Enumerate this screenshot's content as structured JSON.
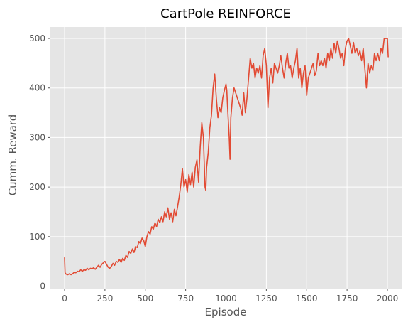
{
  "chart_data": {
    "type": "line",
    "title": "CartPole REINFORCE",
    "xlabel": "Episode",
    "ylabel": "Cumm. Reward",
    "xlim": [
      -88,
      2088
    ],
    "ylim": [
      -5,
      523
    ],
    "xticks": [
      0,
      250,
      500,
      750,
      1000,
      1250,
      1500,
      1750,
      2000
    ],
    "yticks": [
      0,
      100,
      200,
      300,
      400,
      500
    ],
    "grid": true,
    "style": "ggplot",
    "series": [
      {
        "color": "#E24A33",
        "points": [
          [
            0,
            58
          ],
          [
            3,
            27
          ],
          [
            10,
            24
          ],
          [
            20,
            23
          ],
          [
            30,
            25
          ],
          [
            40,
            23
          ],
          [
            50,
            25
          ],
          [
            60,
            28
          ],
          [
            70,
            27
          ],
          [
            80,
            30
          ],
          [
            90,
            29
          ],
          [
            100,
            33
          ],
          [
            110,
            30
          ],
          [
            120,
            33
          ],
          [
            130,
            32
          ],
          [
            140,
            36
          ],
          [
            150,
            33
          ],
          [
            160,
            36
          ],
          [
            170,
            35
          ],
          [
            180,
            37
          ],
          [
            190,
            34
          ],
          [
            200,
            38
          ],
          [
            210,
            42
          ],
          [
            220,
            38
          ],
          [
            230,
            44
          ],
          [
            240,
            47
          ],
          [
            250,
            50
          ],
          [
            260,
            44
          ],
          [
            270,
            38
          ],
          [
            280,
            36
          ],
          [
            290,
            40
          ],
          [
            300,
            46
          ],
          [
            310,
            42
          ],
          [
            320,
            50
          ],
          [
            330,
            48
          ],
          [
            340,
            54
          ],
          [
            350,
            48
          ],
          [
            360,
            56
          ],
          [
            370,
            52
          ],
          [
            380,
            62
          ],
          [
            390,
            58
          ],
          [
            400,
            70
          ],
          [
            410,
            66
          ],
          [
            420,
            75
          ],
          [
            430,
            68
          ],
          [
            440,
            80
          ],
          [
            450,
            78
          ],
          [
            460,
            90
          ],
          [
            470,
            86
          ],
          [
            480,
            97
          ],
          [
            490,
            92
          ],
          [
            500,
            80
          ],
          [
            510,
            100
          ],
          [
            520,
            110
          ],
          [
            530,
            105
          ],
          [
            540,
            120
          ],
          [
            550,
            115
          ],
          [
            560,
            128
          ],
          [
            570,
            120
          ],
          [
            580,
            135
          ],
          [
            590,
            128
          ],
          [
            600,
            140
          ],
          [
            610,
            130
          ],
          [
            620,
            150
          ],
          [
            630,
            140
          ],
          [
            640,
            158
          ],
          [
            650,
            135
          ],
          [
            660,
            148
          ],
          [
            670,
            130
          ],
          [
            680,
            155
          ],
          [
            690,
            142
          ],
          [
            700,
            160
          ],
          [
            710,
            180
          ],
          [
            720,
            205
          ],
          [
            730,
            237
          ],
          [
            740,
            200
          ],
          [
            750,
            215
          ],
          [
            760,
            190
          ],
          [
            770,
            225
          ],
          [
            780,
            205
          ],
          [
            790,
            230
          ],
          [
            800,
            200
          ],
          [
            810,
            240
          ],
          [
            820,
            255
          ],
          [
            830,
            210
          ],
          [
            840,
            280
          ],
          [
            850,
            330
          ],
          [
            860,
            300
          ],
          [
            870,
            200
          ],
          [
            875,
            193
          ],
          [
            880,
            240
          ],
          [
            890,
            270
          ],
          [
            900,
            320
          ],
          [
            910,
            345
          ],
          [
            920,
            400
          ],
          [
            930,
            428
          ],
          [
            940,
            380
          ],
          [
            950,
            340
          ],
          [
            960,
            360
          ],
          [
            970,
            350
          ],
          [
            980,
            380
          ],
          [
            990,
            395
          ],
          [
            1000,
            408
          ],
          [
            1005,
            395
          ],
          [
            1010,
            360
          ],
          [
            1020,
            300
          ],
          [
            1025,
            256
          ],
          [
            1030,
            340
          ],
          [
            1040,
            380
          ],
          [
            1050,
            400
          ],
          [
            1060,
            390
          ],
          [
            1070,
            380
          ],
          [
            1080,
            370
          ],
          [
            1090,
            360
          ],
          [
            1100,
            345
          ],
          [
            1110,
            390
          ],
          [
            1120,
            350
          ],
          [
            1130,
            380
          ],
          [
            1140,
            420
          ],
          [
            1150,
            460
          ],
          [
            1160,
            440
          ],
          [
            1170,
            450
          ],
          [
            1180,
            420
          ],
          [
            1190,
            440
          ],
          [
            1200,
            430
          ],
          [
            1210,
            445
          ],
          [
            1220,
            420
          ],
          [
            1230,
            465
          ],
          [
            1240,
            480
          ],
          [
            1250,
            445
          ],
          [
            1260,
            360
          ],
          [
            1270,
            420
          ],
          [
            1280,
            440
          ],
          [
            1290,
            410
          ],
          [
            1300,
            450
          ],
          [
            1310,
            440
          ],
          [
            1320,
            430
          ],
          [
            1330,
            445
          ],
          [
            1340,
            465
          ],
          [
            1350,
            440
          ],
          [
            1360,
            420
          ],
          [
            1370,
            450
          ],
          [
            1380,
            470
          ],
          [
            1390,
            440
          ],
          [
            1400,
            445
          ],
          [
            1410,
            420
          ],
          [
            1420,
            440
          ],
          [
            1430,
            455
          ],
          [
            1440,
            480
          ],
          [
            1450,
            420
          ],
          [
            1460,
            440
          ],
          [
            1470,
            400
          ],
          [
            1480,
            430
          ],
          [
            1490,
            445
          ],
          [
            1500,
            385
          ],
          [
            1510,
            420
          ],
          [
            1520,
            430
          ],
          [
            1530,
            440
          ],
          [
            1540,
            450
          ],
          [
            1550,
            425
          ],
          [
            1560,
            435
          ],
          [
            1570,
            470
          ],
          [
            1580,
            445
          ],
          [
            1590,
            455
          ],
          [
            1600,
            445
          ],
          [
            1610,
            460
          ],
          [
            1620,
            440
          ],
          [
            1630,
            470
          ],
          [
            1640,
            455
          ],
          [
            1650,
            480
          ],
          [
            1660,
            460
          ],
          [
            1670,
            490
          ],
          [
            1680,
            470
          ],
          [
            1690,
            495
          ],
          [
            1700,
            480
          ],
          [
            1710,
            460
          ],
          [
            1720,
            470
          ],
          [
            1730,
            445
          ],
          [
            1740,
            480
          ],
          [
            1750,
            495
          ],
          [
            1760,
            500
          ],
          [
            1770,
            485
          ],
          [
            1780,
            470
          ],
          [
            1790,
            492
          ],
          [
            1800,
            470
          ],
          [
            1810,
            480
          ],
          [
            1820,
            465
          ],
          [
            1830,
            475
          ],
          [
            1840,
            455
          ],
          [
            1850,
            480
          ],
          [
            1860,
            440
          ],
          [
            1870,
            400
          ],
          [
            1880,
            450
          ],
          [
            1890,
            430
          ],
          [
            1900,
            445
          ],
          [
            1910,
            435
          ],
          [
            1920,
            470
          ],
          [
            1930,
            455
          ],
          [
            1940,
            470
          ],
          [
            1950,
            455
          ],
          [
            1960,
            480
          ],
          [
            1970,
            470
          ],
          [
            1980,
            500
          ],
          [
            1990,
            500
          ],
          [
            2000,
            500
          ],
          [
            2005,
            462
          ]
        ]
      }
    ]
  }
}
